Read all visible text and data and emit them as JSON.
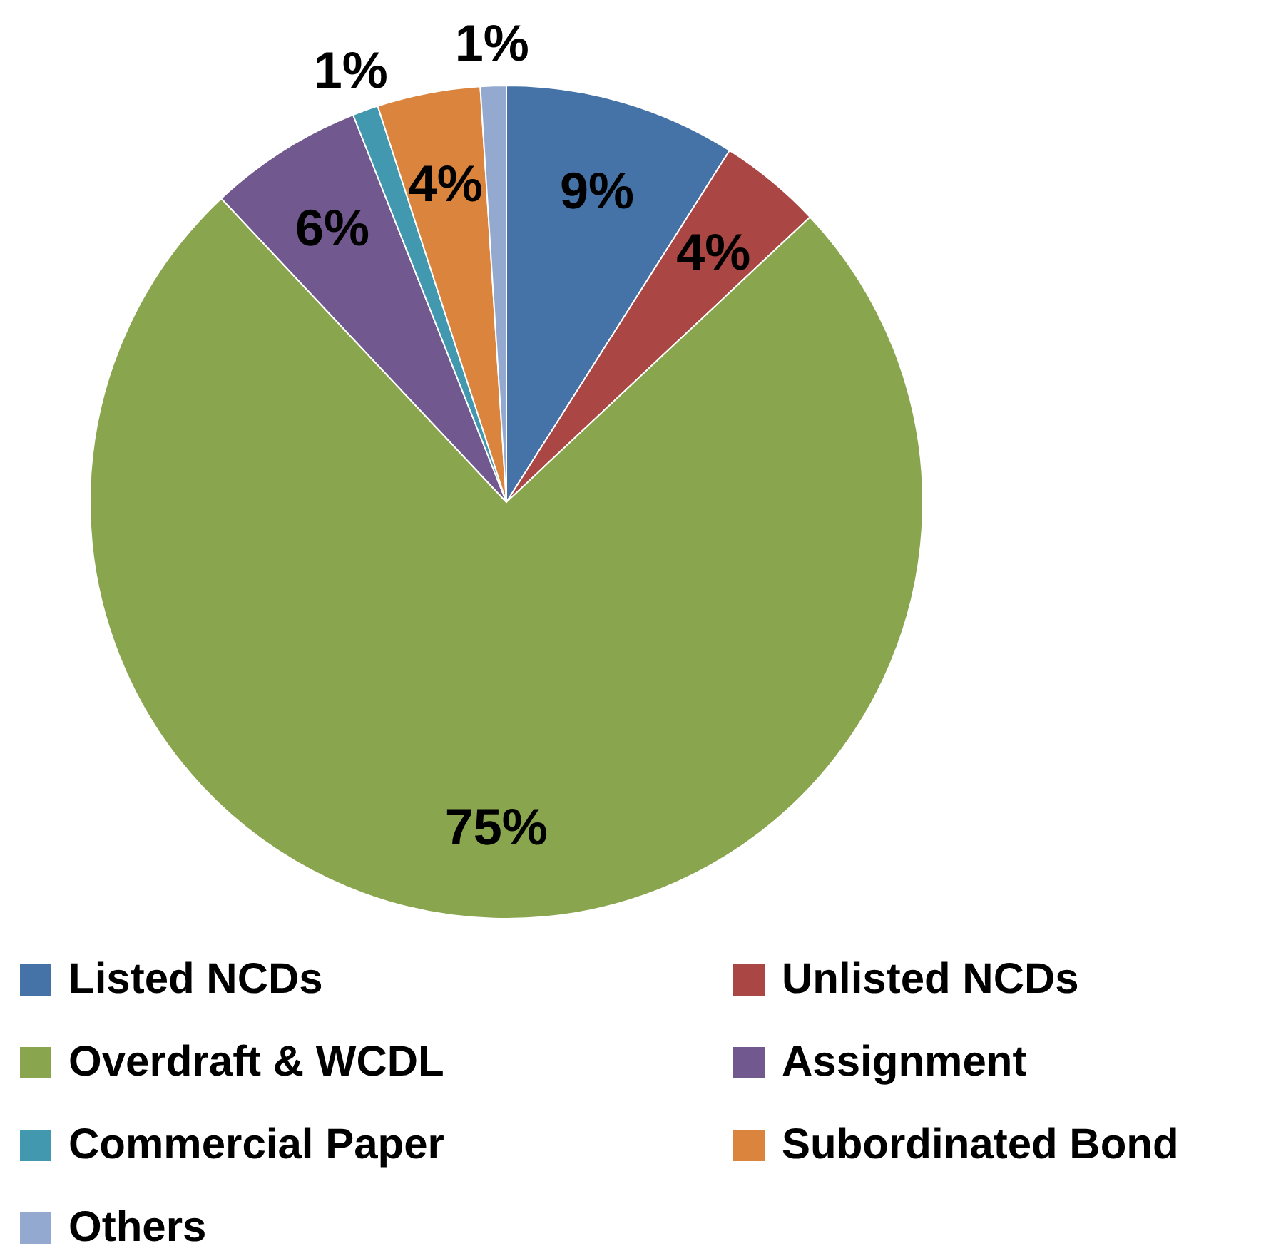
{
  "chart_data": {
    "type": "pie",
    "categories": [
      "Listed NCDs",
      "Unlisted NCDs",
      "Overdraft & WCDL",
      "Assignment",
      "Commercial Paper",
      "Subordinated Bond",
      "Others"
    ],
    "values": [
      9,
      4,
      75,
      6,
      1,
      4,
      1
    ],
    "colors": [
      "#4572a7",
      "#aa4643",
      "#89a54e",
      "#71588f",
      "#4198af",
      "#db843d",
      "#93a9cf"
    ],
    "value_labels": [
      "9%",
      "4%",
      "75%",
      "6%",
      "1%",
      "4%",
      "1%"
    ],
    "legend": "bottom"
  }
}
